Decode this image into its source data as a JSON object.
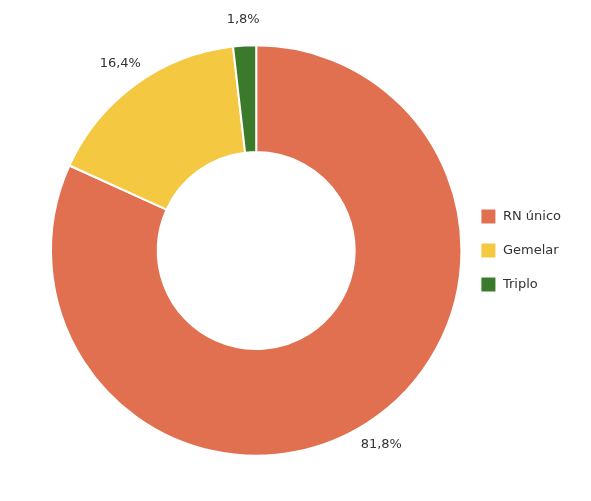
{
  "chart_data": {
    "type": "doughnut",
    "categories": [
      "RN único",
      "Gemelar",
      "Triplo"
    ],
    "values": [
      81.8,
      16.4,
      1.8
    ],
    "value_labels": [
      "81,8%",
      "16,4%",
      "1,8%"
    ],
    "colors": [
      "#E07050",
      "#F5C842",
      "#3A7A2A"
    ],
    "data_labels": true,
    "legend": "right"
  }
}
